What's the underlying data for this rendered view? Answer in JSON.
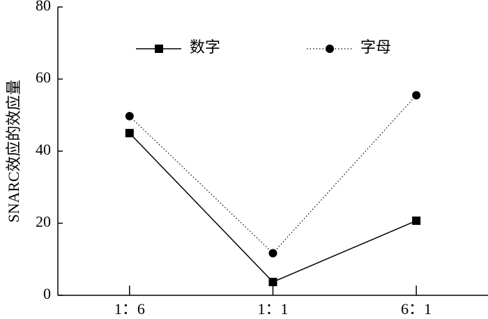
{
  "chart_data": {
    "type": "line",
    "y_label": "SNARC效应的效应量",
    "categories": [
      "1：6",
      "1：1",
      "6：1"
    ],
    "series": [
      {
        "name": "数字",
        "color": "#000000",
        "marker": "square",
        "dash": "solid",
        "values": [
          45,
          3.7,
          20.7
        ]
      },
      {
        "name": "字母",
        "color": "#000000",
        "marker": "circle",
        "dash": "dotted",
        "values": [
          49.7,
          11.7,
          55.5
        ]
      }
    ],
    "ylim": [
      0,
      80
    ],
    "yticks": [
      0,
      20,
      40,
      60,
      80
    ],
    "grid": false
  }
}
